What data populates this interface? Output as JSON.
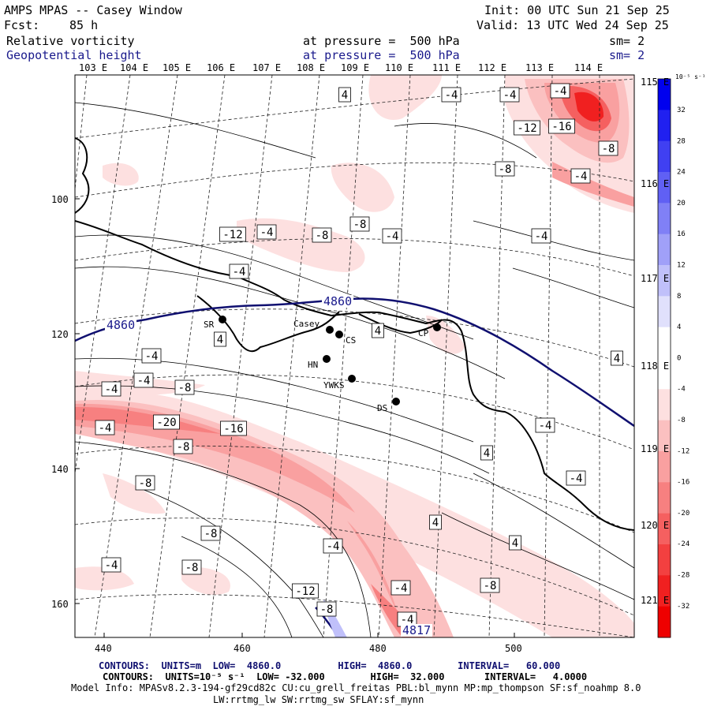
{
  "header": {
    "title": "AMPS MPAS -- Casey Window",
    "forecast_label": "Fcst:",
    "forecast_value": "85 h",
    "init": "Init: 00 UTC Sun 21 Sep 25",
    "valid": "Valid: 13 UTC Wed 24 Sep 25",
    "field1_name": "Relative vorticity",
    "field1_level": "at pressure =  500 hPa",
    "field1_sm": "sm= 2",
    "field2_name": "Geopotential height",
    "field2_level": "at pressure =  500 hPa",
    "field2_sm": "sm= 2"
  },
  "top_longitudes": [
    "103 E",
    "104 E",
    "105 E",
    "106 E",
    "107 E",
    "108 E",
    "109 E",
    "110 E",
    "111 E",
    "112 E",
    "113 E",
    "114 E"
  ],
  "right_longitudes": [
    "115 E",
    "116 E",
    "117 E",
    "118 E",
    "119 E",
    "120 E",
    "121 E"
  ],
  "y_ticks": [
    "100",
    "120",
    "140",
    "160"
  ],
  "x_ticks": [
    "440",
    "460",
    "480",
    "500"
  ],
  "colorbar": {
    "units": "10⁻⁵ s⁻¹",
    "labels": [
      "32",
      "28",
      "24",
      "20",
      "16",
      "12",
      "8",
      "4",
      "0",
      "-4",
      "-8",
      "-12",
      "-16",
      "-20",
      "-24",
      "-28",
      "-32"
    ]
  },
  "stations": [
    {
      "name": "SR"
    },
    {
      "name": "Casey"
    },
    {
      "name": "CS"
    },
    {
      "name": "CP"
    },
    {
      "name": "HN"
    },
    {
      "name": "YWKS"
    },
    {
      "name": "DS"
    }
  ],
  "height_labels": [
    "4860",
    "4860",
    "4817"
  ],
  "vorticity_labels": [
    "4",
    "-4",
    "-4",
    "-4",
    "-16",
    "-12",
    "-8",
    "-8",
    "-4",
    "-12",
    "-4",
    "-8",
    "-8",
    "-4",
    "-4",
    "-4",
    "4",
    "4",
    "4",
    "4",
    "-4",
    "-4",
    "-8",
    "-4",
    "-4",
    "-8",
    "-20",
    "-16",
    "-4",
    "-8",
    "-4",
    "4",
    "-8",
    "4",
    "-8",
    "-4",
    "-8",
    "-4",
    "-4",
    "-12",
    "-8",
    "-4",
    "-8",
    "-12",
    "4",
    "-8",
    "-16"
  ],
  "footer": {
    "line1": "CONTOURS:  UNITS=m  LOW=  4860.0          HIGH=  4860.0        INTERVAL=   60.000",
    "line2": "CONTOURS:  UNITS=10⁻⁵ s⁻¹  LOW= -32.000        HIGH=  32.000       INTERVAL=   4.0000",
    "line3": "Model Info: MPASv8.2.3-194-gf29cd82c CU:cu_grell_freitas PBL:bl_mynn MP:mp_thompson SF:sf_noahmp 8.0",
    "line4": "LW:rrtmg_lw SW:rrtmg_sw SFLAY:sf_mynn"
  },
  "colors": {
    "heights": "#101070",
    "colorbar": [
      "#0000ee",
      "#2020f0",
      "#4040f2",
      "#6060f4",
      "#8080f6",
      "#a0a0f8",
      "#c0c0fa",
      "#e0e0fc",
      "#ffffff",
      "#ffffff",
      "#fde0e0",
      "#fbc0c0",
      "#f9a0a0",
      "#f78080",
      "#f56060",
      "#f34040",
      "#f02020",
      "#ee0000"
    ]
  }
}
